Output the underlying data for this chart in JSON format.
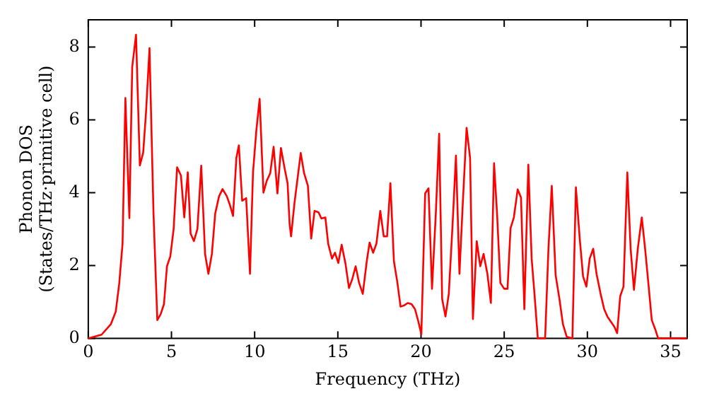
{
  "chart_data": {
    "type": "line",
    "xlabel": "Frequency (THz)",
    "ylabel": "Phonon DOS\n(States/THz·primitive cell)",
    "xlim": [
      0,
      36
    ],
    "ylim": [
      0,
      8.75
    ],
    "xticks": [
      0,
      5,
      10,
      15,
      20,
      25,
      30,
      35
    ],
    "yticks": [
      0,
      2,
      4,
      6,
      8
    ],
    "grid": false,
    "legend": false,
    "marker": "none",
    "line_style": "solid",
    "series": [
      {
        "color": "#ff0000",
        "x": [
          0,
          0.8,
          1.36,
          1.65,
          1.86,
          2.06,
          2.23,
          2.47,
          2.64,
          2.87,
          3.1,
          3.3,
          3.47,
          3.68,
          3.92,
          4.15,
          4.35,
          4.55,
          4.73,
          4.93,
          5.13,
          5.34,
          5.57,
          5.77,
          5.98,
          6.15,
          6.35,
          6.56,
          6.79,
          7.02,
          7.22,
          7.43,
          7.63,
          7.86,
          8.07,
          8.33,
          8.53,
          8.7,
          8.9,
          9.05,
          9.25,
          9.49,
          9.72,
          9.9,
          10.1,
          10.3,
          10.53,
          10.73,
          10.94,
          11.14,
          11.37,
          11.58,
          11.8,
          11.98,
          12.1,
          12.19,
          12.39,
          12.77,
          12.97,
          13.2,
          13.4,
          13.6,
          13.84,
          14.01,
          14.25,
          14.42,
          14.65,
          14.83,
          15.03,
          15.23,
          15.46,
          15.67,
          15.87,
          16.07,
          16.28,
          16.5,
          16.74,
          16.91,
          17.12,
          17.32,
          17.55,
          17.76,
          17.96,
          18.16,
          18.37,
          18.57,
          18.77,
          18.97,
          19.2,
          19.43,
          19.64,
          19.84,
          20.02,
          20.25,
          20.45,
          20.66,
          20.89,
          21.09,
          21.27,
          21.47,
          21.67,
          21.9,
          22.1,
          22.31,
          22.51,
          22.74,
          22.95,
          23.12,
          23.35,
          23.56,
          23.76,
          23.99,
          24.2,
          24.39,
          24.57,
          24.77,
          25.0,
          25.2,
          25.38,
          25.58,
          25.81,
          26.01,
          26.21,
          26.45,
          26.65,
          26.82,
          27.02,
          27.46,
          27.66,
          27.86,
          28.09,
          28.32,
          28.53,
          28.76,
          29.1,
          29.31,
          29.54,
          29.74,
          29.94,
          30.14,
          30.35,
          30.55,
          30.81,
          31.01,
          31.21,
          31.45,
          31.62,
          31.79,
          31.97,
          32.17,
          32.4,
          32.6,
          32.8,
          33.03,
          33.27,
          33.47,
          33.67,
          33.87,
          34.1,
          34.25,
          35.98
        ],
        "values": [
          0,
          0.1,
          0.39,
          0.73,
          1.5,
          2.6,
          6.6,
          3.3,
          7.45,
          8.34,
          4.75,
          5.1,
          6.2,
          7.97,
          3.43,
          0.5,
          0.66,
          0.94,
          1.98,
          2.25,
          3.0,
          4.7,
          4.47,
          3.32,
          4.56,
          2.88,
          2.67,
          3.0,
          4.74,
          2.32,
          1.77,
          2.32,
          3.43,
          3.9,
          4.1,
          3.9,
          3.64,
          3.36,
          4.95,
          5.3,
          3.78,
          3.85,
          1.77,
          4.54,
          5.7,
          6.58,
          4.0,
          4.33,
          4.54,
          5.26,
          3.98,
          5.23,
          4.67,
          4.26,
          3.15,
          2.8,
          3.7,
          5.09,
          4.54,
          4.19,
          2.74,
          3.5,
          3.46,
          3.29,
          3.32,
          2.6,
          2.19,
          2.35,
          2.07,
          2.57,
          2.05,
          1.38,
          1.63,
          1.98,
          1.52,
          1.22,
          2.12,
          2.63,
          2.35,
          2.6,
          3.5,
          2.8,
          2.8,
          4.26,
          2.12,
          1.56,
          0.87,
          0.9,
          0.97,
          0.94,
          0.8,
          0.46,
          0.11,
          3.98,
          4.12,
          1.36,
          3.43,
          5.62,
          1.08,
          0.6,
          1.22,
          3.15,
          5.02,
          1.77,
          3.7,
          5.78,
          4.95,
          0.53,
          2.67,
          1.98,
          2.32,
          1.77,
          0.97,
          4.81,
          3.43,
          1.52,
          1.36,
          1.36,
          3.02,
          3.32,
          4.09,
          3.87,
          0.8,
          4.77,
          2.19,
          1.22,
          0,
          0,
          2.46,
          4.19,
          1.74,
          1.08,
          0.39,
          0.04,
          0,
          4.15,
          2.74,
          1.7,
          1.42,
          2.19,
          2.46,
          1.77,
          1.19,
          0.8,
          0.59,
          0.43,
          0.32,
          0.14,
          1.15,
          1.42,
          4.56,
          2.46,
          1.33,
          2.46,
          3.32,
          2.46,
          1.49,
          0.5,
          0.22,
          0,
          0
        ]
      }
    ]
  }
}
